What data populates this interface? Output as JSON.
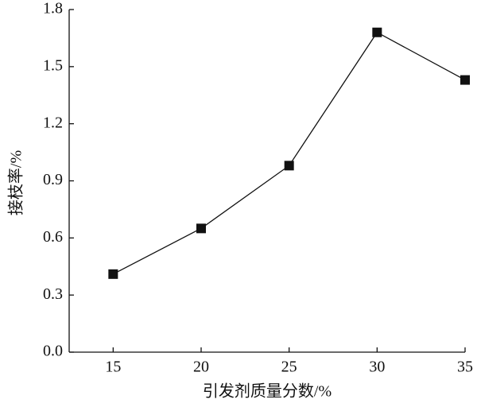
{
  "chart_data": {
    "type": "line",
    "x_label": "引发剂质量分数/%",
    "y_label": "接枝率/%",
    "x": [
      15,
      20,
      25,
      30,
      35
    ],
    "series": [
      {
        "color": "#111111",
        "values": [
          0.41,
          0.65,
          0.98,
          1.68,
          1.43
        ]
      }
    ],
    "xlim": [
      12.5,
      35
    ],
    "xticks": [
      15,
      20,
      25,
      30,
      35
    ],
    "ylim": [
      0,
      1.8
    ],
    "yticks": [
      {
        "value": 0,
        "label": "0.0"
      },
      0.3,
      0.6,
      0.9,
      1.2,
      1.5,
      1.8
    ],
    "marker": "square"
  }
}
